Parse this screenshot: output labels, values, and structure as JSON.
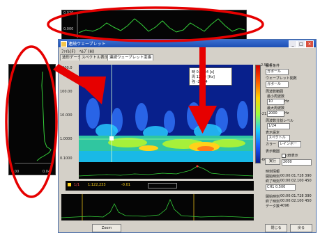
{
  "colors": {
    "annotation": "#e60000",
    "titlebar": "#2a5cc4",
    "wavelet_background": "#08208c",
    "trace": "#35d23a"
  },
  "top_inset": {
    "y_top": "0.020",
    "y_mid": "0.000"
  },
  "left_inset": {
    "x_left": "0.00",
    "x_right": "0.04"
  },
  "window": {
    "title": "連続ウェーブレット",
    "title_icon": "app-icon",
    "buttons": [
      "_",
      "□",
      "×"
    ]
  },
  "menu": [
    "ﾌｧｲﾙ(F)",
    "ﾍﾙﾌﾟ(H)"
  ],
  "tabs": [
    "波形データ",
    "スペクトル表示",
    "連続ウェーブレット変換"
  ],
  "wavelet_axis": [
    "1000.0",
    "100.00",
    "10.000",
    "1.0000",
    "0.1000"
  ],
  "popup": {
    "rows": [
      "時 0.1234 [s]",
      "周 12.34 [Hz]",
      "強 -20.34"
    ]
  },
  "colorbar": {
    "top": "2.5E-3",
    "mid": "-21.0",
    "bottom": "-66.2"
  },
  "status_values": [
    "1/1",
    "1:122,233",
    "-0.01"
  ],
  "right_panel": {
    "section1": "解析条件",
    "mother_wavelet_label": "ウェーブレット関数",
    "mother_wavelet_value": "ガボール",
    "freq_label": "周波数範囲",
    "fmin_label": "最小周波数",
    "fmin_value": "10",
    "fmax_label": "最大周波数",
    "fmax_value": "2000",
    "unit_hz": "Hz",
    "scale_label": "周波数分割レベル",
    "scale_value": "1/24",
    "display_label": "表示設定",
    "display_value": "スペクトル",
    "color_label": "カラー",
    "color_value": "レインボー",
    "range_label": "表示範囲",
    "check_label": "dB表示",
    "exec_button": "実行",
    "time_section": "時刻情報",
    "start_label": "開始時刻",
    "start_value": "00:00:01.728  390",
    "end_label": "終了時刻",
    "end_value": "00:00:02.100  450",
    "channel_value": "CH1  0.500",
    "t2_label": "開始時刻",
    "t2_value": "00:00:01.728 390",
    "t3_label": "終了時刻",
    "t3_value": "00:00:02.100 450",
    "count_label": "データ数",
    "count_value": "4096"
  },
  "bottom_buttons": [
    "Zoom",
    "閉じる",
    "戻る"
  ]
}
